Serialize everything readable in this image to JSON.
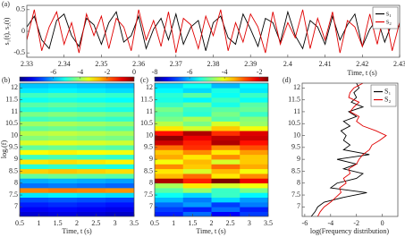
{
  "chart_data": [
    {
      "type": "line",
      "panel_label": "(a)",
      "xlabel": "Time, t (s)",
      "ylabel": "s₁(t), s₂(t)",
      "x": [
        2.33,
        2.332,
        2.334,
        2.336,
        2.338,
        2.34,
        2.342,
        2.344,
        2.346,
        2.348,
        2.35,
        2.352,
        2.354,
        2.356,
        2.358,
        2.36,
        2.362,
        2.364,
        2.366,
        2.368,
        2.37,
        2.372,
        2.374,
        2.376,
        2.378,
        2.38,
        2.382,
        2.384,
        2.386,
        2.388,
        2.39,
        2.392,
        2.394,
        2.396,
        2.398,
        2.4,
        2.402,
        2.404,
        2.406,
        2.408,
        2.41,
        2.412,
        2.414,
        2.416,
        2.418,
        2.42,
        2.422,
        2.424,
        2.426,
        2.428,
        2.43
      ],
      "series": [
        {
          "name": "s₁",
          "color": "#000000",
          "values": [
            0.1,
            0.35,
            -0.2,
            -0.4,
            0.25,
            0.4,
            -0.1,
            -0.35,
            0.3,
            0.15,
            -0.3,
            0.2,
            0.45,
            -0.25,
            -0.1,
            0.35,
            -0.4,
            0.05,
            0.3,
            -0.2,
            0.4,
            -0.3,
            0.1,
            0.25,
            -0.45,
            0.2,
            0.35,
            -0.15,
            -0.3,
            0.4,
            0.05,
            -0.35,
            0.3,
            0.2,
            -0.25,
            0.45,
            -0.1,
            -0.4,
            0.25,
            0.1,
            -0.3,
            0.35,
            -0.2,
            0.15,
            0.4,
            -0.35,
            0.05,
            0.3,
            -0.25,
            0.2,
            0.1
          ]
        },
        {
          "name": "s₂",
          "color": "#e00000",
          "values": [
            -0.2,
            0.5,
            -0.45,
            0.1,
            0.45,
            -0.3,
            0.2,
            -0.5,
            0.4,
            -0.1,
            0.35,
            -0.4,
            0.3,
            0.1,
            -0.45,
            0.5,
            -0.2,
            0.25,
            -0.35,
            0.45,
            -0.5,
            0.3,
            0.15,
            -0.4,
            0.35,
            -0.1,
            0.5,
            -0.45,
            0.2,
            -0.25,
            0.4,
            0.1,
            -0.5,
            0.45,
            -0.3,
            0.2,
            -0.15,
            0.5,
            -0.4,
            0.3,
            -0.2,
            0.45,
            -0.5,
            0.25,
            0.1,
            -0.35,
            0.4,
            -0.3,
            0.5,
            -0.45,
            0.2
          ]
        }
      ],
      "xlim": [
        2.33,
        2.43
      ],
      "xticks": [
        2.33,
        2.34,
        2.35,
        2.36,
        2.37,
        2.38,
        2.39,
        2.4,
        2.41,
        2.42,
        2.43
      ],
      "ylim": [
        -0.6,
        0.6
      ],
      "yticks": [
        -0.5,
        0,
        0.5
      ],
      "legend": "upper right"
    },
    {
      "type": "heatmap",
      "panel_label": "(b)",
      "xlabel": "Time, t (s)",
      "ylabel": "logₑ(f)",
      "x": [
        0.5,
        1.25,
        2,
        2.75,
        3.5
      ],
      "y": [
        6.6,
        6.8,
        7,
        7.2,
        7.4,
        7.6,
        7.8,
        8,
        8.2,
        8.4,
        8.6,
        8.8,
        9,
        9.2,
        9.4,
        9.6,
        9.8,
        10,
        10.2,
        10.4,
        10.6,
        10.8,
        11,
        11.2,
        11.4,
        11.6,
        11.8,
        12,
        12.2
      ],
      "z": [
        [
          -7.8,
          -7.7,
          -7.8,
          -7.9
        ],
        [
          -7.5,
          -7.4,
          -7.5,
          -7.6
        ],
        [
          -7.2,
          -7.1,
          -7.2,
          -7.3
        ],
        [
          -6.8,
          -6.7,
          -6.8,
          -6.9
        ],
        [
          -5.5,
          -5.4,
          -5.5,
          -5.6
        ],
        [
          -2.2,
          -2.1,
          -2.2,
          -2.3
        ],
        [
          -6.5,
          -6.4,
          -6.5,
          -6.6
        ],
        [
          -6,
          -5.9,
          -6,
          -6.1
        ],
        [
          -4.5,
          -4.4,
          -4.5,
          -4.6
        ],
        [
          -2.8,
          -2.7,
          -2.8,
          -2.9
        ],
        [
          -5,
          -4.9,
          -5,
          -5.1
        ],
        [
          -3,
          -2.9,
          -3,
          -3.1
        ],
        [
          -4.8,
          -4.7,
          -4.8,
          -4.9
        ],
        [
          -3.2,
          -3.1,
          -3.2,
          -3.3
        ],
        [
          -4.5,
          -4.4,
          -4.5,
          -4.6
        ],
        [
          -3.5,
          -3.4,
          -3.5,
          -3.6
        ],
        [
          -4.2,
          -4.1,
          -4.2,
          -4.3
        ],
        [
          -3.8,
          -3.7,
          -3.8,
          -3.9
        ],
        [
          -4.5,
          -4.4,
          -4.5,
          -4.6
        ],
        [
          -4,
          -3.9,
          -4,
          -4.1
        ],
        [
          -4.8,
          -4.7,
          -4.8,
          -4.9
        ],
        [
          -4.3,
          -4.2,
          -4.3,
          -4.4
        ],
        [
          -5,
          -4.9,
          -5,
          -5.1
        ],
        [
          -4.6,
          -4.5,
          -4.6,
          -4.7
        ],
        [
          -5.2,
          -5.1,
          -5.2,
          -5.3
        ],
        [
          -4.8,
          -4.7,
          -4.8,
          -4.9
        ],
        [
          -5.5,
          -5.4,
          -5.5,
          -5.6
        ],
        [
          -5.8,
          -5.7,
          -5.8,
          -5.9
        ]
      ],
      "clim": [
        -8.5,
        0
      ],
      "cticks": [
        -6,
        -4,
        -2,
        0
      ],
      "xlim": [
        0.5,
        3.5
      ],
      "xticks": [
        0.5,
        1,
        1.5,
        2,
        2.5,
        3,
        3.5
      ],
      "ylim": [
        6.6,
        12.2
      ],
      "yticks": [
        7,
        7.5,
        8,
        8.5,
        9,
        9.5,
        10,
        10.5,
        11,
        11.5,
        12
      ]
    },
    {
      "type": "heatmap",
      "panel_label": "(c)",
      "xlabel": "Time, t (s)",
      "x": [
        0.5,
        1.25,
        2,
        2.75,
        3.5
      ],
      "y": [
        6.6,
        6.8,
        7,
        7.2,
        7.4,
        7.6,
        7.8,
        8,
        8.2,
        8.4,
        8.6,
        8.8,
        9,
        9.2,
        9.4,
        9.6,
        9.8,
        10,
        10.2,
        10.4,
        10.6,
        10.8,
        11,
        11.2,
        11.4,
        11.6,
        11.8,
        12,
        12.2
      ],
      "z": [
        [
          -7,
          -6.5,
          -7.2,
          -6.8
        ],
        [
          -6.8,
          -7,
          -6.5,
          -7
        ],
        [
          -6.5,
          -6.2,
          -6.8,
          -6.4
        ],
        [
          -6,
          -6.4,
          -5.8,
          -6.2
        ],
        [
          -5.5,
          -5.8,
          -5.2,
          -5.6
        ],
        [
          -5,
          -4.6,
          -5.2,
          -4.8
        ],
        [
          -4.5,
          -3.8,
          -4.2,
          -4
        ],
        [
          -1.8,
          -2.5,
          -1.5,
          -2.2
        ],
        [
          -3.5,
          -3,
          -3.8,
          -3.2
        ],
        [
          -3.8,
          -4.2,
          -3.5,
          -4
        ],
        [
          -3.2,
          -3.6,
          -3,
          -3.4
        ],
        [
          -4,
          -3.5,
          -4.2,
          -3.6
        ],
        [
          -3.4,
          -3.8,
          -3.2,
          -3.6
        ],
        [
          -3.6,
          -3.2,
          -3.8,
          -3.3
        ],
        [
          -3,
          -2.6,
          -3.2,
          -2.8
        ],
        [
          -2,
          -2.5,
          -1.8,
          -2.4
        ],
        [
          -1.6,
          -2.2,
          -1.9,
          -2
        ],
        [
          -2.4,
          -1.8,
          -2.6,
          -2.1
        ],
        [
          -3.8,
          -4.2,
          -3.6,
          -4
        ],
        [
          -4.4,
          -4.8,
          -4.2,
          -4.6
        ],
        [
          -4.8,
          -4.5,
          -5,
          -4.7
        ],
        [
          -5,
          -5.3,
          -4.8,
          -5.2
        ],
        [
          -4.8,
          -5.2,
          -5,
          -4.9
        ],
        [
          -5.2,
          -4.9,
          -5.4,
          -5
        ],
        [
          -5.4,
          -5.6,
          -5.2,
          -5.5
        ],
        [
          -5.3,
          -5,
          -5.5,
          -5.2
        ],
        [
          -5.6,
          -5.8,
          -5.4,
          -5.7
        ],
        [
          -5.8,
          -5.5,
          -6,
          -5.6
        ]
      ],
      "clim": [
        -8,
        -1.5
      ],
      "cticks": [
        -8,
        -6,
        -4,
        -2
      ],
      "xlim": [
        0.5,
        3.5
      ],
      "xticks": [
        0.5,
        1,
        1.5,
        2,
        2.5,
        3,
        3.5
      ],
      "ylim": [
        6.6,
        12.2
      ],
      "yticks": [
        7,
        7.5,
        8,
        8.5,
        9,
        9.5,
        10,
        10.5,
        11,
        11.5,
        12
      ]
    },
    {
      "type": "profile",
      "panel_label": "(d)",
      "xlabel": "log(Frequency distribution)",
      "y": [
        6.6,
        6.8,
        7,
        7.2,
        7.4,
        7.6,
        7.8,
        8,
        8.2,
        8.4,
        8.6,
        8.8,
        9,
        9.2,
        9.4,
        9.6,
        9.8,
        10,
        10.2,
        10.4,
        10.6,
        10.8,
        11,
        11.2,
        11.4,
        11.6,
        11.8,
        12,
        12.2
      ],
      "series": [
        {
          "name": "S₁",
          "color": "#000000",
          "values": [
            -5.5,
            -5.2,
            -5,
            -4.5,
            -3,
            -1.2,
            -4,
            -3.5,
            -2,
            -1.5,
            -3,
            -2,
            -3.5,
            -1,
            -3,
            -2.5,
            -3,
            -2.8,
            -3.2,
            -2.5,
            -3,
            -2,
            -2.6,
            -1.5,
            -2.4,
            -2,
            -2.2,
            -1.8,
            -2
          ]
        },
        {
          "name": "S₂",
          "color": "#e00000",
          "values": [
            -5,
            -4.8,
            -4.5,
            -4,
            -3.6,
            -3.2,
            -3.3,
            -2.8,
            -3,
            -2.5,
            -2.6,
            -2,
            -1.8,
            -1.5,
            -1,
            -0.8,
            -0.2,
            0.3,
            -0.5,
            -1.5,
            -2,
            -1.8,
            -2.5,
            -2.2,
            -1.8,
            -2.6,
            -2.5,
            -2.2,
            -1.5
          ]
        }
      ],
      "xlim": [
        -6.2,
        1.2
      ],
      "xticks": [
        -6,
        -4,
        -2,
        0
      ],
      "ylim": [
        6.6,
        12.2
      ],
      "yticks": [
        7,
        7.5,
        8,
        8.5,
        9,
        9.5,
        10,
        10.5,
        11,
        11.5,
        12
      ],
      "legend": "upper right"
    }
  ]
}
